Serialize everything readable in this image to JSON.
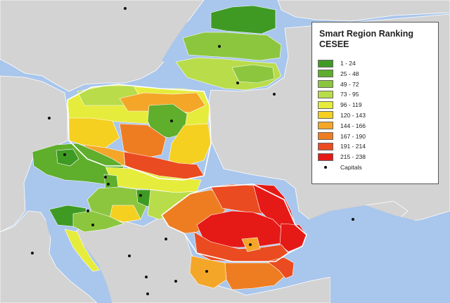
{
  "legend": {
    "title_line1": "Smart Region Ranking",
    "title_line2": "CESEE",
    "classes": [
      {
        "label": "1 - 24",
        "color": "#3f9a24"
      },
      {
        "label": "25 - 48",
        "color": "#5fae2c"
      },
      {
        "label": "49 - 72",
        "color": "#8cc63f"
      },
      {
        "label": "73 - 95",
        "color": "#b9dc4a"
      },
      {
        "label": "96 - 119",
        "color": "#e6ec3c"
      },
      {
        "label": "120 - 143",
        "color": "#f5d020"
      },
      {
        "label": "144 - 166",
        "color": "#f4a629"
      },
      {
        "label": "167 - 190",
        "color": "#ee7d22"
      },
      {
        "label": "191 - 214",
        "color": "#ea4b20"
      },
      {
        "label": "215 - 238",
        "color": "#e51a17"
      }
    ],
    "capitals_label": "Capitals"
  },
  "colors": {
    "sea": "#a9c6ec",
    "land_other": "#d3d3d3",
    "borders": "#ffffff"
  }
}
